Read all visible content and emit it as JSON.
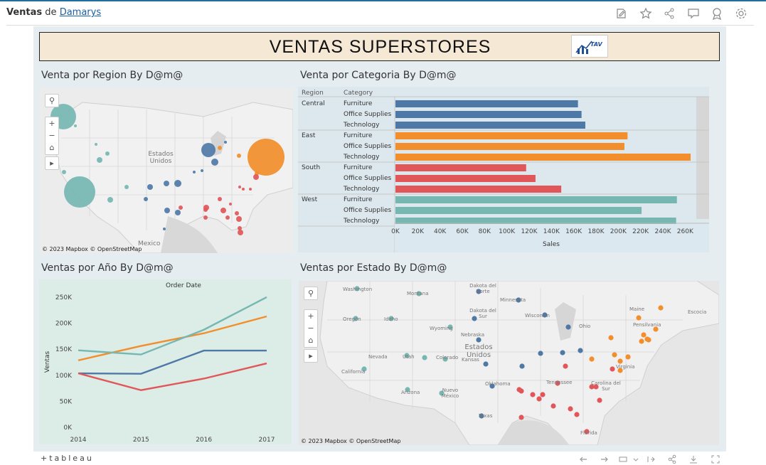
{
  "header": {
    "title_bold": "Ventas",
    "title_mid": "de",
    "title_author": "Damarys",
    "icons": [
      "edit-icon",
      "star-icon",
      "share-icon",
      "comment-icon",
      "badge-icon",
      "settings-icon"
    ]
  },
  "banner": {
    "title": "VENTAS SUPERSTORES",
    "logo_text": "TAV"
  },
  "panels": {
    "region_title": "Venta por Region By D@m@",
    "category_title": "Venta por Categoria By D@m@",
    "year_title": "Ventas por Año By D@m@",
    "state_title": "Ventas por Estado By D@m@"
  },
  "region_map": {
    "label_country": "Estados\nUnidos",
    "label_mexico": "Mexico",
    "credit": "© 2023 Mapbox © OpenStreetMap"
  },
  "state_map": {
    "credit": "© 2023 Mapbox © OpenStreetMap",
    "labels": [
      "Washington",
      "Montana",
      "Dakota del Norte",
      "Minnesota",
      "Wisconsin",
      "Dakota del Sur",
      "Idaho",
      "Oregón",
      "Wyoming",
      "Nebraska",
      "Estados Unidos",
      "Nevada",
      "Utah",
      "Colorado",
      "Kansas",
      "Pensilvania",
      "Maine",
      "Escocia",
      "California",
      "Arizona",
      "Nuevo México",
      "Oklahoma",
      "Texas",
      "Tennessee",
      "Carolina del Sur",
      "Florida",
      "Ohio",
      "Virginia"
    ]
  },
  "colors": {
    "Central": "#4e79a7",
    "East": "#f28e2b",
    "South": "#e15759",
    "West": "#76b7b2"
  },
  "chart_data": [
    {
      "type": "bar",
      "title": "Venta por Categoria By D@m@",
      "xlabel": "Sales",
      "col_headers": [
        "Region",
        "Category"
      ],
      "xlim": [
        0,
        270000
      ],
      "ticks": [
        "0K",
        "20K",
        "40K",
        "60K",
        "80K",
        "100K",
        "120K",
        "140K",
        "160K",
        "180K",
        "200K",
        "220K",
        "240K",
        "260K"
      ],
      "groups": [
        {
          "region": "Central",
          "categories": [
            "Furniture",
            "Office Supplies",
            "Technology"
          ],
          "values": [
            163800,
            167000,
            170400
          ]
        },
        {
          "region": "East",
          "categories": [
            "Furniture",
            "Office Supplies",
            "Technology"
          ],
          "values": [
            208300,
            205500,
            264900
          ]
        },
        {
          "region": "South",
          "categories": [
            "Furniture",
            "Office Supplies",
            "Technology"
          ],
          "values": [
            117300,
            125700,
            148800
          ]
        },
        {
          "region": "West",
          "categories": [
            "Furniture",
            "Office Supplies",
            "Technology"
          ],
          "values": [
            252600,
            220900,
            251900
          ]
        }
      ]
    },
    {
      "type": "line",
      "title": "Order Date",
      "ylabel": "Ventas",
      "x": [
        "2014",
        "2015",
        "2016",
        "2017"
      ],
      "yticks": [
        "250K",
        "200K",
        "150K",
        "100K",
        "50K",
        "0K"
      ],
      "ylim": [
        0,
        250000
      ],
      "series": [
        {
          "name": "Central",
          "values": [
            103800,
            102900,
            147400,
            147400
          ]
        },
        {
          "name": "East",
          "values": [
            128700,
            156300,
            180700,
            213100
          ]
        },
        {
          "name": "South",
          "values": [
            103800,
            71400,
            93600,
            122900
          ]
        },
        {
          "name": "West",
          "values": [
            147900,
            139900,
            187500,
            250100
          ]
        }
      ]
    }
  ],
  "footer": {
    "logo": "+tableau"
  }
}
